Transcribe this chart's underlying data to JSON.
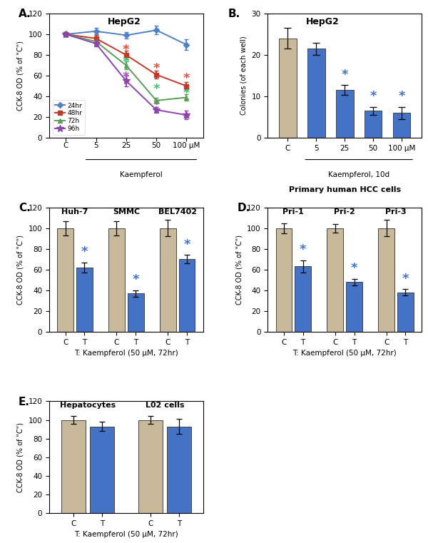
{
  "panel_A": {
    "title": "HepG2",
    "xlabel": "Kaempferol",
    "ylabel": "CCK-8 OD (% of \"C\")",
    "x_labels": [
      "C",
      "5",
      "25",
      "50",
      "100 μM"
    ],
    "x_vals": [
      0,
      1,
      2,
      3,
      4
    ],
    "ylim": [
      0,
      120
    ],
    "yticks": [
      0,
      20,
      40,
      60,
      80,
      100,
      120
    ],
    "series": {
      "24hr": {
        "color": "#4f80c8",
        "marker": "D",
        "values": [
          100,
          103,
          99,
          104,
          90
        ],
        "yerr": [
          2,
          3,
          3,
          4,
          5
        ]
      },
      "48hr": {
        "color": "#c0392b",
        "marker": "s",
        "values": [
          100,
          96,
          80,
          61,
          50
        ],
        "yerr": [
          2,
          3,
          4,
          4,
          4
        ]
      },
      "72h": {
        "color": "#5a9e5a",
        "marker": "^",
        "values": [
          100,
          93,
          70,
          36,
          39
        ],
        "yerr": [
          2,
          3,
          4,
          3,
          3
        ]
      },
      "96h": {
        "color": "#8e44ad",
        "marker": "*",
        "values": [
          100,
          91,
          55,
          27,
          22
        ],
        "yerr": [
          2,
          3,
          5,
          3,
          4
        ]
      }
    },
    "sig_positions": {
      "48hr": {
        "x": [
          2,
          3,
          4
        ],
        "y": [
          85,
          67,
          57
        ]
      },
      "72h": {
        "x": [
          2,
          3,
          4
        ],
        "y": [
          73,
          47,
          43
        ]
      },
      "96h": {
        "x": [
          2,
          3,
          4
        ],
        "y": [
          59,
          32,
          17
        ]
      }
    },
    "sig_colors": {
      "48hr": "#e74c3c",
      "72h": "#2ecc71",
      "96h": "#9b59b6"
    }
  },
  "panel_B": {
    "title": "HepG2",
    "xlabel": "Kaempferol, 10d",
    "ylabel": "Colonies (of each well)",
    "x_labels": [
      "C",
      "5",
      "25",
      "50",
      "100 μM"
    ],
    "ylim": [
      0,
      30
    ],
    "yticks": [
      0,
      10,
      20,
      30
    ],
    "values": [
      24,
      21.5,
      11.5,
      6.5,
      6
    ],
    "yerr": [
      2.5,
      1.5,
      1.2,
      1.0,
      1.5
    ],
    "colors": [
      "#c8b99a",
      "#4472c4",
      "#4472c4",
      "#4472c4",
      "#4472c4"
    ],
    "sig": [
      false,
      false,
      true,
      true,
      true
    ]
  },
  "panel_C": {
    "ylabel": "CCK-8 OD (% of \"C\")",
    "xlabel": "T: Kaempferol (50 μM, 72hr)",
    "ylim": [
      0,
      120
    ],
    "yticks": [
      0,
      20,
      40,
      60,
      80,
      100,
      120
    ],
    "groups": [
      "Huh-7",
      "SMMC",
      "BEL7402"
    ],
    "C_vals": [
      100,
      100,
      100
    ],
    "T_vals": [
      62,
      37,
      70
    ],
    "C_err": [
      7,
      7,
      8
    ],
    "T_err": [
      5,
      3,
      4
    ]
  },
  "panel_D": {
    "ylabel": "CCK-8 OD (% of \"C\")",
    "xlabel": "T: Kaempferol (50 μM, 72hr)",
    "title": "Primary human HCC cells",
    "ylim": [
      0,
      120
    ],
    "yticks": [
      0,
      20,
      40,
      60,
      80,
      100,
      120
    ],
    "groups": [
      "Pri-1",
      "Pri-2",
      "Pri-3"
    ],
    "C_vals": [
      100,
      100,
      100
    ],
    "T_vals": [
      63,
      48,
      38
    ],
    "C_err": [
      5,
      4,
      8
    ],
    "T_err": [
      6,
      3,
      3
    ]
  },
  "panel_E": {
    "ylabel": "CCK-8 OD (% of \"C\")",
    "xlabel": "T: Kaempferol (50 μM, 72hr)",
    "ylim": [
      0,
      120
    ],
    "yticks": [
      0,
      20,
      40,
      60,
      80,
      100,
      120
    ],
    "groups": [
      "Hepatocytes",
      "L02 cells"
    ],
    "C_vals": [
      100,
      100
    ],
    "T_vals": [
      93,
      93
    ],
    "C_err": [
      4,
      4
    ],
    "T_err": [
      5,
      8
    ]
  },
  "bar_color_C": "#c8b99a",
  "bar_color_T": "#4472c4",
  "blue_star": "#4472c4"
}
